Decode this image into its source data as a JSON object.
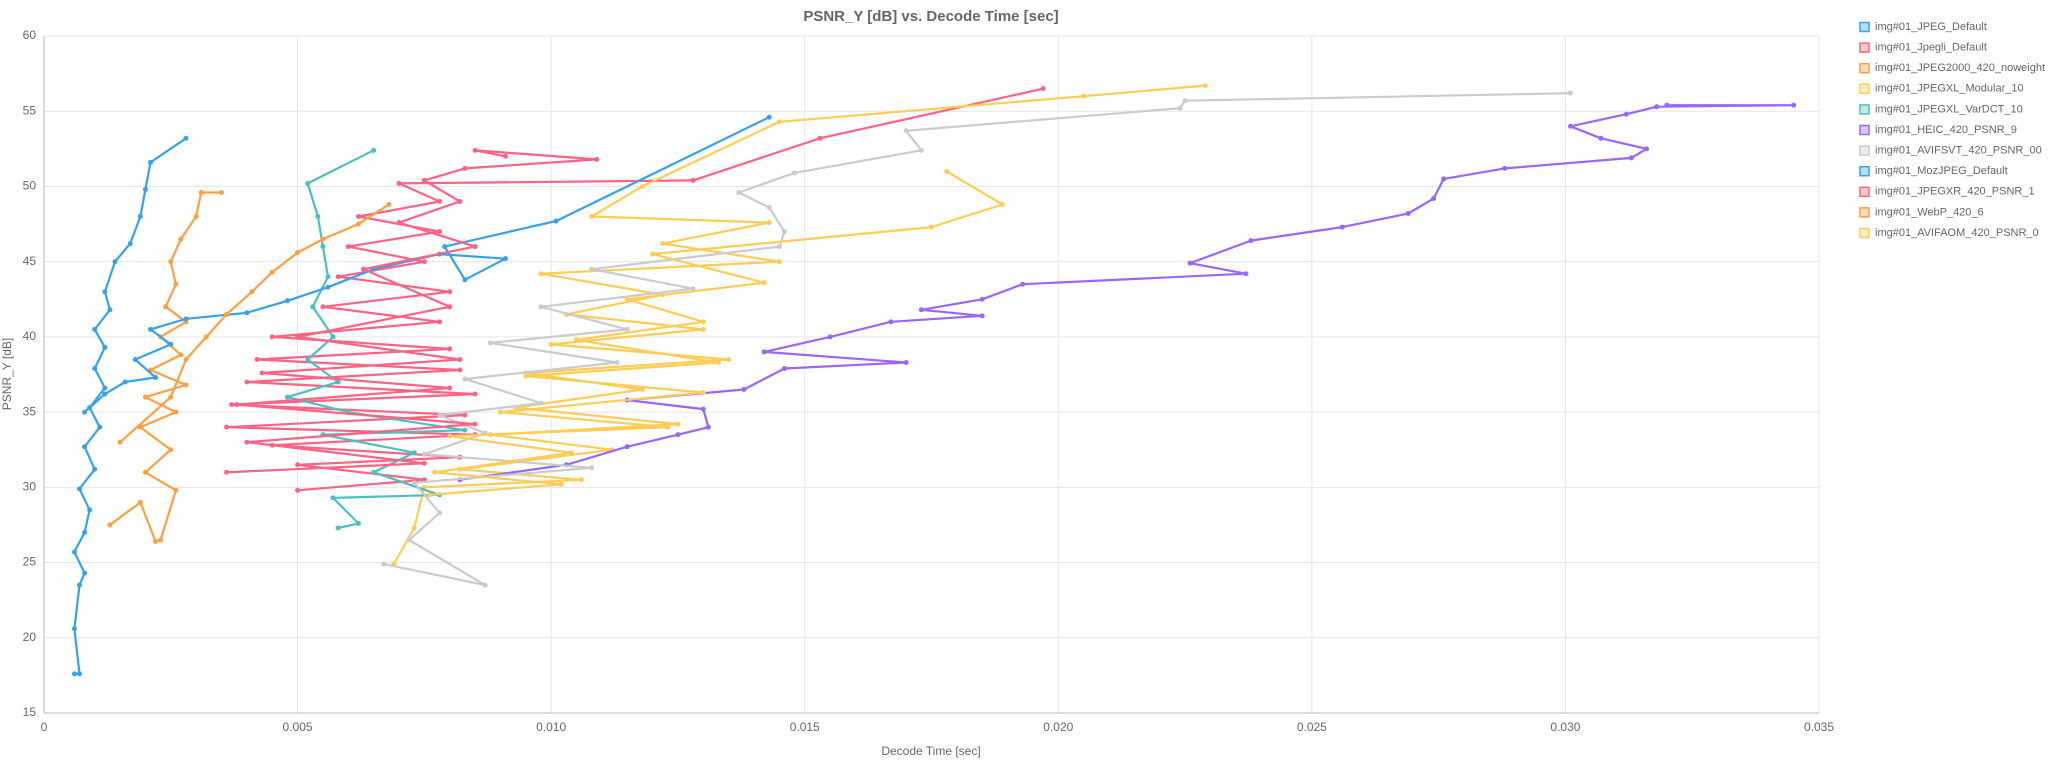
{
  "chart_data": {
    "type": "line",
    "title": "PSNR_Y [dB] vs. Decode Time [sec]",
    "x_label": "Decode Time [sec]",
    "y_label": "PSNR_Y [dB]",
    "xlim": [
      0,
      0.035
    ],
    "xticks": [
      0,
      0.005,
      {
        "value": 0.01,
        "label": "0.010"
      },
      0.015,
      {
        "value": 0.02,
        "label": "0.020"
      },
      0.025,
      {
        "value": 0.03,
        "label": "0.030"
      },
      0.035
    ],
    "ylim": [
      15,
      60
    ],
    "yticks": [
      15,
      20,
      25,
      30,
      35,
      40,
      45,
      50,
      55,
      60
    ],
    "grid": true,
    "legend": "right",
    "series": [
      {
        "name": "img#01_JPEG_Default",
        "color": "#36a2eb",
        "x": [
          0.0006,
          0.0007,
          0.0006,
          0.0007,
          0.0008,
          0.0006,
          0.0008,
          0.0009,
          0.0007,
          0.001,
          0.0008,
          0.0011,
          0.0009,
          0.0012,
          0.001,
          0.0012,
          0.001,
          0.0013,
          0.0012,
          0.0014,
          0.0017,
          0.0019,
          0.002,
          0.0021,
          0.0028
        ],
        "values": [
          17.6,
          17.6,
          20.6,
          23.5,
          24.3,
          25.7,
          27,
          28.5,
          29.9,
          31.2,
          32.7,
          34,
          35.3,
          36.6,
          37.9,
          39.3,
          40.5,
          41.8,
          43,
          45,
          46.2,
          48,
          49.8,
          51.6,
          53.2
        ]
      },
      {
        "name": "img#01_Jpegli_Default",
        "color": "#ff6384",
        "x": [
          0.005,
          0.0075,
          0.005,
          0.0082,
          0.0045,
          0.0085,
          0.0036,
          0.0083,
          0.0037,
          0.0085,
          0.004,
          0.0082,
          0.0042,
          0.008,
          0.0045,
          0.0078,
          0.0055,
          0.008,
          0.0058,
          0.0075,
          0.006,
          0.0078,
          0.0062,
          0.0078,
          0.007,
          0.0128,
          0.0153,
          0.0197
        ],
        "values": [
          29.8,
          30.5,
          31.5,
          32,
          32.8,
          33.5,
          34,
          34.8,
          35.5,
          36.2,
          37,
          37.8,
          38.5,
          39.2,
          40,
          41,
          42,
          43,
          44,
          45,
          46,
          47,
          48,
          49,
          50.2,
          50.4,
          53.2,
          56.5
        ]
      },
      {
        "name": "img#01_JPEG2000_420_noweight",
        "color": "#ff9f40",
        "x": [
          0.0013,
          0.0019,
          0.0022,
          0.0023,
          0.0026,
          0.002,
          0.0025,
          0.0019,
          0.0026,
          0.002,
          0.0028,
          0.0021,
          0.0027,
          0.0023,
          0.0028,
          0.0024,
          0.0026,
          0.0025,
          0.0027,
          0.003,
          0.0031,
          0.0035
        ],
        "values": [
          27.5,
          29,
          26.4,
          26.5,
          29.8,
          31,
          32.5,
          34,
          35,
          36,
          36.8,
          37.8,
          38.8,
          40,
          41,
          42,
          43.5,
          45,
          46.5,
          48,
          49.6,
          49.6
        ]
      },
      {
        "name": "img#01_JPEGXL_Modular_10",
        "color": "#ffcd56",
        "x": [
          0.0069,
          0.0073,
          0.0075,
          0.0106,
          0.0082,
          0.0112,
          0.0088,
          0.0125,
          0.0093,
          0.0118,
          0.0095,
          0.0135,
          0.01,
          0.013,
          0.0103,
          0.0122,
          0.0098,
          0.0145,
          0.0122,
          0.0143,
          0.0108,
          0.0118,
          0.0145,
          0.0205,
          0.0229
        ],
        "values": [
          24.9,
          27.3,
          30,
          30.5,
          31.2,
          32.5,
          33.5,
          34.2,
          35.3,
          36.5,
          37.6,
          38.5,
          39.5,
          40.5,
          41.5,
          42.8,
          44.2,
          45,
          46.2,
          47.6,
          48,
          50,
          54.3,
          56,
          56.7
        ]
      },
      {
        "name": "img#01_JPEGXL_VarDCT_10",
        "color": "#4bc0c0",
        "x": [
          0.0058,
          0.0062,
          0.0057,
          0.0078,
          0.0065,
          0.0073,
          0.0055,
          0.0083,
          0.006,
          0.0048,
          0.0058,
          0.0052,
          0.0057,
          0.0053,
          0.0056,
          0.0055,
          0.0054,
          0.0052,
          0.0065
        ],
        "values": [
          27.3,
          27.6,
          29.3,
          29.5,
          31,
          32.3,
          33.5,
          33.8,
          35,
          36,
          37,
          38.5,
          40,
          42,
          44,
          46,
          48,
          50.2,
          52.4
        ]
      },
      {
        "name": "img#01_HEIC_420_PSNR_9",
        "color": "#9966ff",
        "x": [
          0.0082,
          0.0103,
          0.0115,
          0.0125,
          0.0131,
          0.013,
          0.0115,
          0.0138,
          0.0146,
          0.017,
          0.0142,
          0.0155,
          0.0167,
          0.0185,
          0.0173,
          0.0185,
          0.0193,
          0.0237,
          0.0226,
          0.0238,
          0.0256,
          0.0269,
          0.0274,
          0.0276,
          0.0288,
          0.0313,
          0.0316,
          0.0307,
          0.0301,
          0.0312,
          0.0318,
          0.0345,
          0.032
        ],
        "values": [
          30.5,
          31.5,
          32.7,
          33.5,
          34,
          35.2,
          35.8,
          36.5,
          37.9,
          38.3,
          39,
          40,
          41,
          41.4,
          41.8,
          42.5,
          43.5,
          44.2,
          44.9,
          46.4,
          47.3,
          48.2,
          49.2,
          50.5,
          51.2,
          51.9,
          52.5,
          53.2,
          54,
          54.8,
          55.3,
          55.4,
          55.4
        ]
      },
      {
        "name": "img#01_AVIFSVT_420_PSNR_00",
        "color": "#c9cbcf",
        "x": [
          0.0067,
          0.0087,
          0.0072,
          0.0078,
          0.0073,
          0.0108,
          0.0075,
          0.0087,
          0.0078,
          0.0098,
          0.0083,
          0.0113,
          0.0088,
          0.0115,
          0.0098,
          0.0128,
          0.0108,
          0.0145,
          0.0146,
          0.0143,
          0.0137,
          0.0148,
          0.0173,
          0.017,
          0.0224,
          0.0225,
          0.0301
        ],
        "values": [
          24.9,
          23.5,
          26.5,
          28.3,
          30.3,
          31.3,
          32.2,
          33.6,
          34.8,
          35.6,
          37.2,
          38.3,
          39.6,
          40.5,
          42,
          43.2,
          44.5,
          46,
          47,
          48.6,
          49.6,
          50.9,
          52.4,
          53.7,
          55.2,
          55.7,
          56.2
        ]
      },
      {
        "name": "img#01_MozJPEG_Default",
        "color": "#36a2eb",
        "x": [
          0.0008,
          0.0012,
          0.0016,
          0.0022,
          0.0018,
          0.0025,
          0.0021,
          0.0028,
          0.004,
          0.0048,
          0.0056,
          0.0065,
          0.0078,
          0.0091,
          0.0083,
          0.0079,
          0.0101,
          0.0143
        ],
        "values": [
          35,
          36.2,
          37,
          37.3,
          38.5,
          39.5,
          40.5,
          41.2,
          41.6,
          42.4,
          43.3,
          44.5,
          45.5,
          45.2,
          43.8,
          46,
          47.7,
          54.6
        ]
      },
      {
        "name": "img#01_JPEGXR_420_PSNR_1",
        "color": "#ff6384",
        "x": [
          0.0036,
          0.0075,
          0.004,
          0.0085,
          0.0038,
          0.008,
          0.0043,
          0.0082,
          0.005,
          0.008,
          0.0063,
          0.0085,
          0.007,
          0.0082,
          0.0075,
          0.0083,
          0.0109,
          0.0085,
          0.0091
        ],
        "values": [
          31,
          31.6,
          33,
          34.2,
          35.5,
          36.6,
          37.6,
          38.5,
          40,
          42,
          44.5,
          46,
          47.6,
          49,
          50.4,
          51.2,
          51.8,
          52.4,
          52
        ]
      },
      {
        "name": "img#01_WebP_420_6",
        "color": "#ff9f40",
        "x": [
          0.0015,
          0.0025,
          0.0028,
          0.0032,
          0.0036,
          0.0041,
          0.0045,
          0.005,
          0.0055,
          0.0062,
          0.0068
        ],
        "values": [
          33,
          36,
          38.5,
          40,
          41.5,
          43,
          44.3,
          45.6,
          46.5,
          47.5,
          48.8
        ]
      },
      {
        "name": "img#01_AVIFAOM_420_PSNR_0",
        "color": "#ffcd56",
        "x": [
          0.0076,
          0.0102,
          0.0077,
          0.0104,
          0.008,
          0.0123,
          0.009,
          0.013,
          0.0095,
          0.0133,
          0.0105,
          0.013,
          0.0115,
          0.0142,
          0.012,
          0.0175,
          0.0189,
          0.0178
        ],
        "values": [
          29.5,
          30.2,
          31,
          32.3,
          33.4,
          34,
          35,
          36.3,
          37.4,
          38.3,
          39.8,
          41,
          42.5,
          43.6,
          45.5,
          47.3,
          48.8,
          51
        ]
      }
    ]
  }
}
